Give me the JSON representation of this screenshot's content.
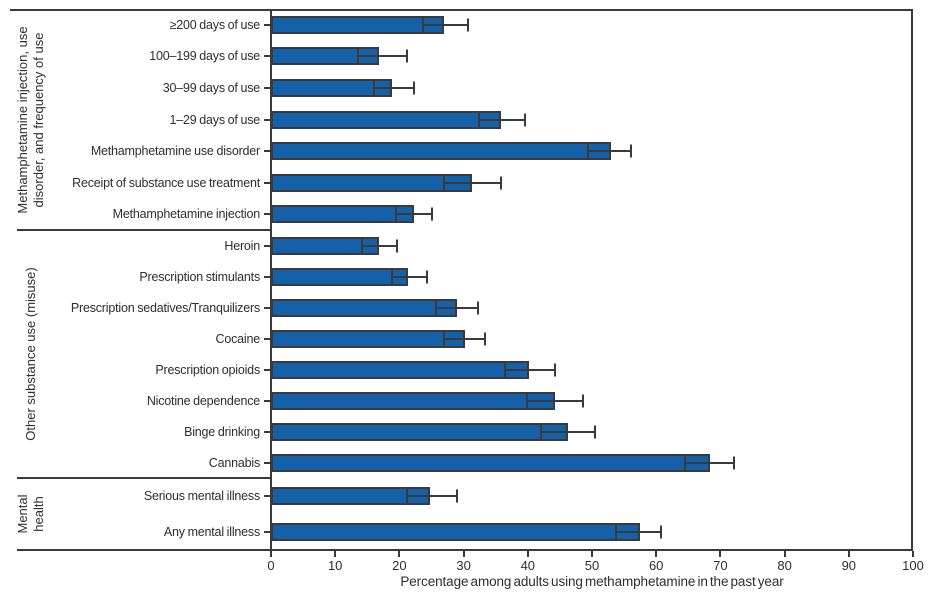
{
  "chart_data": {
    "type": "bar",
    "orientation": "horizontal",
    "title": "",
    "xlabel": "Percentage among adults using methamphetamine in the past year",
    "ylabel": "",
    "xlim": [
      0,
      100
    ],
    "xticks": [
      0,
      10,
      20,
      30,
      40,
      50,
      60,
      70,
      80,
      90,
      100
    ],
    "grid": false,
    "legend": "none",
    "error_bars": true,
    "bar_color": "#1561A9",
    "bar_border_color": "#3a3a3a",
    "axis_color": "#3a3a3a",
    "groups": [
      {
        "label": "Methamphetamine injection, use disorder, and frequency of use",
        "label_display": "Methamphetamine injection, use\ndisorder, and frequency of use",
        "items": [
          {
            "label": "≥200 days of use",
            "value": 27.0,
            "ci_low": 23.6,
            "ci_high": 30.7
          },
          {
            "label": "100–199 days of use",
            "value": 16.9,
            "ci_low": 13.6,
            "ci_high": 21.2
          },
          {
            "label": "30–99 days of use",
            "value": 18.9,
            "ci_low": 16.1,
            "ci_high": 22.2
          },
          {
            "label": "1–29 days of use",
            "value": 35.9,
            "ci_low": 32.4,
            "ci_high": 39.6
          },
          {
            "label": "Methamphetamine use disorder",
            "value": 52.9,
            "ci_low": 49.4,
            "ci_high": 56.1
          },
          {
            "label": "Receipt of substance use treatment",
            "value": 31.3,
            "ci_low": 27.0,
            "ci_high": 35.9
          },
          {
            "label": "Methamphetamine injection",
            "value": 22.3,
            "ci_low": 19.4,
            "ci_high": 25.1
          }
        ]
      },
      {
        "label": "Other substance use (misuse)",
        "label_display": "Other substance use (misuse)",
        "items": [
          {
            "label": "Heroin",
            "value": 16.8,
            "ci_low": 14.1,
            "ci_high": 19.6
          },
          {
            "label": "Prescription stimulants",
            "value": 21.4,
            "ci_low": 18.9,
            "ci_high": 24.3
          },
          {
            "label": "Prescription sedatives/Tranquilizers",
            "value": 28.9,
            "ci_low": 25.7,
            "ci_high": 32.3
          },
          {
            "label": "Cocaine",
            "value": 30.2,
            "ci_low": 27.0,
            "ci_high": 33.4
          },
          {
            "label": "Prescription opioids",
            "value": 40.2,
            "ci_low": 36.4,
            "ci_high": 44.3
          },
          {
            "label": "Nicotine dependence",
            "value": 44.2,
            "ci_low": 39.8,
            "ci_high": 48.6
          },
          {
            "label": "Binge drinking",
            "value": 46.2,
            "ci_low": 42.0,
            "ci_high": 50.4
          },
          {
            "label": "Cannabis",
            "value": 68.4,
            "ci_low": 64.5,
            "ci_high": 72.1
          }
        ]
      },
      {
        "label": "Mental health",
        "label_display": "Mental\nhealth",
        "items": [
          {
            "label": "Serious mental illness",
            "value": 24.8,
            "ci_low": 21.2,
            "ci_high": 28.9
          },
          {
            "label": "Any mental illness",
            "value": 57.4,
            "ci_low": 53.7,
            "ci_high": 60.8
          }
        ]
      }
    ]
  }
}
